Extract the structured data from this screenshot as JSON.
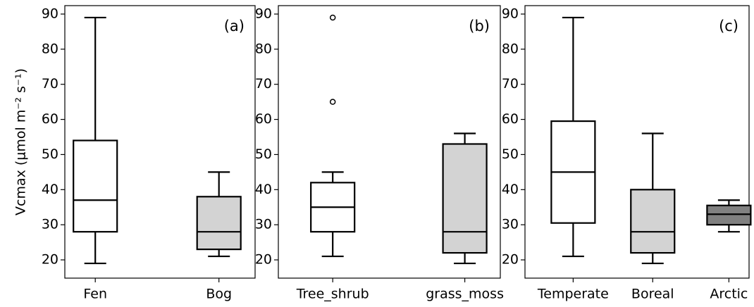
{
  "chart_data": [
    {
      "type": "box",
      "annotation": "(a)",
      "ylabel": "Vcmax (μmol m⁻² s⁻¹)",
      "categories": [
        "Fen",
        "Bog"
      ],
      "boxes": [
        {
          "whislo": 19,
          "q1": 28,
          "med": 37,
          "q3": 54,
          "whishi": 89,
          "fliers": [],
          "color": "#ffffff"
        },
        {
          "whislo": 21,
          "q1": 23,
          "med": 28,
          "q3": 38,
          "whishi": 45,
          "fliers": [],
          "color": "#d3d3d3"
        }
      ],
      "ylim": [
        14.8,
        92.4
      ],
      "yticks": [
        20,
        30,
        40,
        50,
        60,
        70,
        80,
        90
      ]
    },
    {
      "type": "box",
      "annotation": "(b)",
      "categories": [
        "Tree_shrub",
        "grass_moss"
      ],
      "boxes": [
        {
          "whislo": 21,
          "q1": 28,
          "med": 35,
          "q3": 42,
          "whishi": 45,
          "fliers": [
            65,
            89
          ],
          "color": "#ffffff"
        },
        {
          "whislo": 19,
          "q1": 22,
          "med": 28,
          "q3": 53,
          "whishi": 56,
          "fliers": [],
          "color": "#d3d3d3"
        }
      ],
      "ylim": [
        14.8,
        92.4
      ],
      "yticks": [
        20,
        30,
        40,
        50,
        60,
        70,
        80,
        90
      ]
    },
    {
      "type": "box",
      "annotation": "(c)",
      "categories": [
        "Temperate",
        "Boreal",
        "Arctic"
      ],
      "boxes": [
        {
          "whislo": 21,
          "q1": 30.5,
          "med": 45,
          "q3": 59.5,
          "whishi": 89,
          "fliers": [],
          "color": "#ffffff"
        },
        {
          "whislo": 19,
          "q1": 22,
          "med": 28,
          "q3": 40,
          "whishi": 56,
          "fliers": [],
          "color": "#d3d3d3"
        },
        {
          "whislo": 28,
          "q1": 30,
          "med": 33,
          "q3": 35.5,
          "whishi": 37,
          "fliers": [],
          "color": "#808080"
        }
      ],
      "ylim": [
        14.8,
        92.4
      ],
      "yticks": [
        20,
        30,
        40,
        50,
        60,
        70,
        80,
        90
      ]
    }
  ]
}
